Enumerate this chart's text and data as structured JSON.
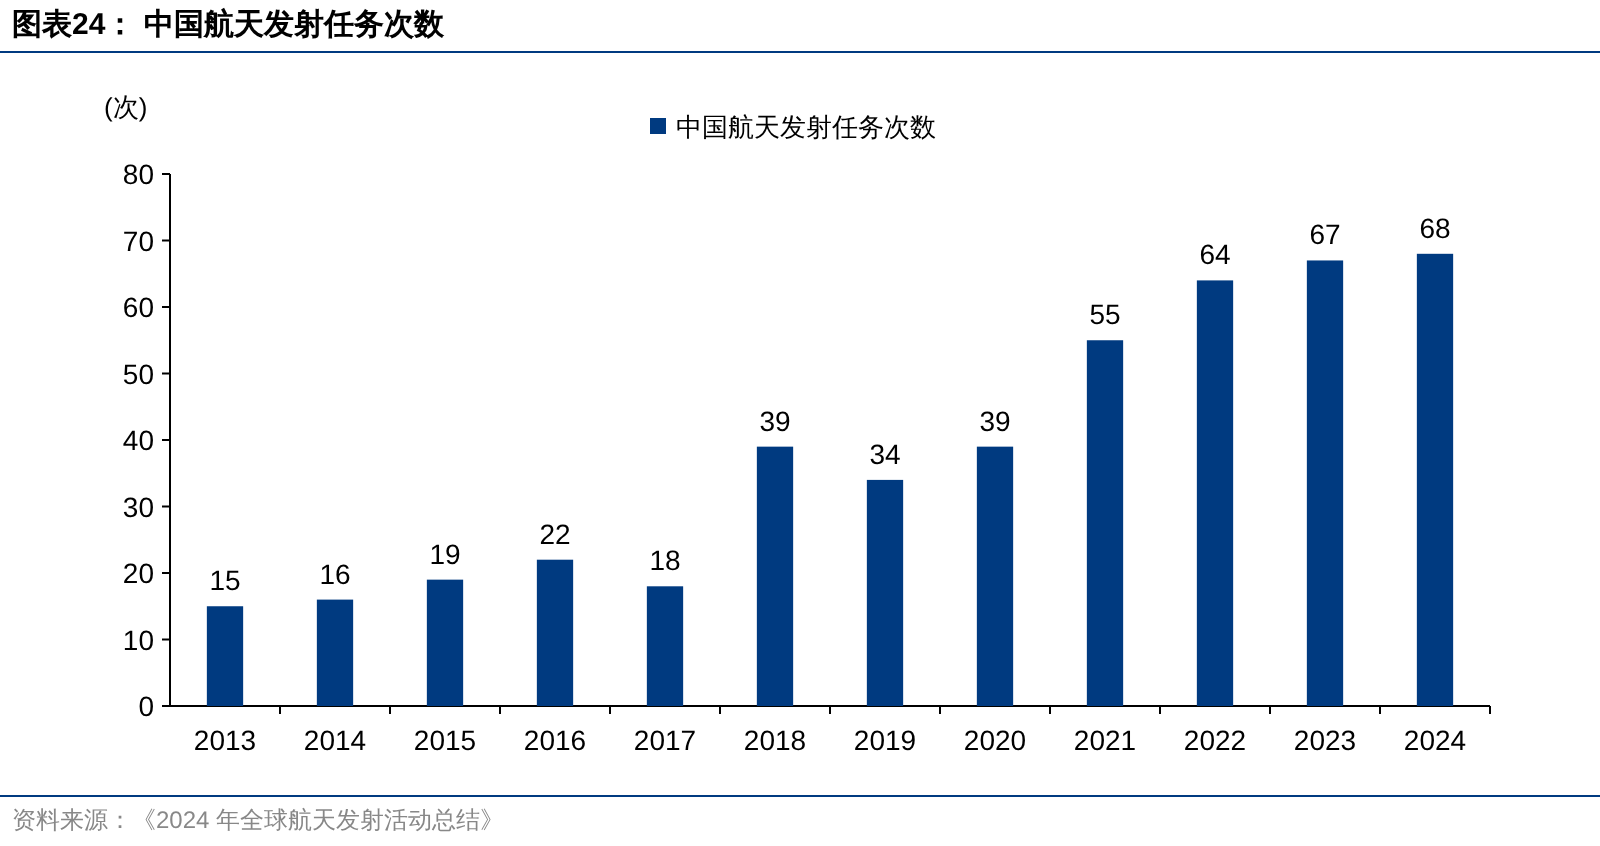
{
  "chart_data": {
    "type": "bar",
    "title": "图表24：  中国航天发射任务次数",
    "ylabel": "(次)",
    "categories": [
      "2013",
      "2014",
      "2015",
      "2016",
      "2017",
      "2018",
      "2019",
      "2020",
      "2021",
      "2022",
      "2023",
      "2024"
    ],
    "series": [
      {
        "name": "中国航天发射任务次数",
        "color": "#003a80",
        "values": [
          15,
          16,
          19,
          22,
          18,
          39,
          34,
          39,
          55,
          64,
          67,
          68
        ]
      }
    ],
    "ylim": [
      0,
      80
    ],
    "yticks": [
      0,
      10,
      20,
      30,
      40,
      50,
      60,
      70,
      80
    ],
    "data_labels": true,
    "legend": "top",
    "grid": false,
    "annotations": [
      "资料来源：《2024 年全球航天发射活动总结》"
    ]
  }
}
